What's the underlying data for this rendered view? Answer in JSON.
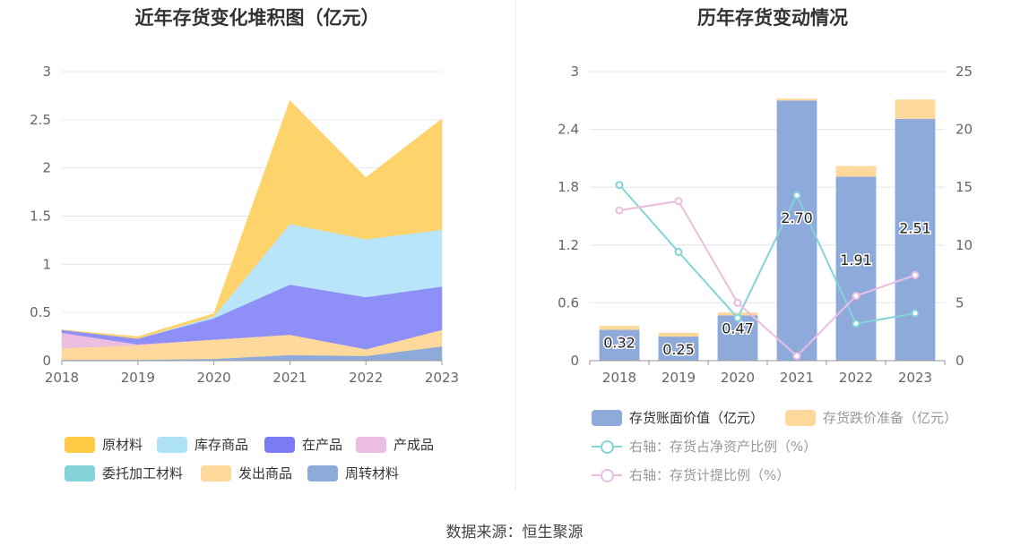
{
  "chart_data": [
    {
      "type": "area",
      "title": "近年存货变化堆积图（亿元）",
      "x": [
        "2018",
        "2019",
        "2020",
        "2021",
        "2022",
        "2023"
      ],
      "ylim": [
        0,
        3
      ],
      "yticks": [
        "0",
        "0.5",
        "1",
        "1.5",
        "2",
        "2.5",
        "3"
      ],
      "stacked": true,
      "grid": true,
      "legend_position": "bottom",
      "series": [
        {
          "name": "周转材料",
          "color": "#8eaadb",
          "values": [
            0.01,
            0.01,
            0.02,
            0.06,
            0.05,
            0.15
          ]
        },
        {
          "name": "委托加工材料",
          "color": "#83d3d8",
          "values": [
            0.0,
            0.0,
            0.0,
            0.0,
            0.0,
            0.0
          ]
        },
        {
          "name": "发出商品",
          "color": "#ffd99b",
          "values": [
            0.12,
            0.15,
            0.2,
            0.21,
            0.07,
            0.17
          ]
        },
        {
          "name": "产成品",
          "color": "#ebbde0",
          "values": [
            0.16,
            0.01,
            0.0,
            0.0,
            0.0,
            0.0
          ]
        },
        {
          "name": "在产品",
          "color": "#8f8ff8",
          "values": [
            0.03,
            0.06,
            0.22,
            0.52,
            0.54,
            0.45
          ]
        },
        {
          "name": "库存商品",
          "color": "#b9e5fa",
          "values": [
            0.0,
            0.0,
            0.02,
            0.63,
            0.6,
            0.59
          ]
        },
        {
          "name": "原材料",
          "color": "#ffd36b",
          "values": [
            0.0,
            0.02,
            0.03,
            1.28,
            0.64,
            1.15
          ]
        }
      ],
      "legend": [
        {
          "name": "原材料",
          "color": "#ffc845"
        },
        {
          "name": "库存商品",
          "color": "#aee2f7"
        },
        {
          "name": "在产品",
          "color": "#7b7bf5"
        },
        {
          "name": "产成品",
          "color": "#ebbde0"
        },
        {
          "name": "委托加工材料",
          "color": "#83d3d8"
        },
        {
          "name": "发出商品",
          "color": "#ffd99b"
        },
        {
          "name": "周转材料",
          "color": "#8eaadb"
        }
      ]
    },
    {
      "type": "bar",
      "title": "历年存货变动情况",
      "categories": [
        "2018",
        "2019",
        "2020",
        "2021",
        "2022",
        "2023"
      ],
      "ylim": [
        0,
        3
      ],
      "yticks": [
        "0",
        "0.6",
        "1.2",
        "1.8",
        "2.4",
        "3"
      ],
      "y2lim": [
        0,
        25
      ],
      "y2ticks": [
        "0",
        "5",
        "10",
        "15",
        "20",
        "25"
      ],
      "grid": true,
      "legend_position": "bottom",
      "series": [
        {
          "name": "存货账面价值（亿元）",
          "color": "#8eaadb",
          "values": [
            0.32,
            0.25,
            0.47,
            2.7,
            1.91,
            2.51
          ],
          "labels": [
            "0.32",
            "0.25",
            "0.47",
            "2.70",
            "1.91",
            "2.51"
          ],
          "stacked": true
        },
        {
          "name": "存货跌价准备（亿元）",
          "color": "#ffd99b",
          "values": [
            0.04,
            0.04,
            0.03,
            0.02,
            0.11,
            0.2
          ],
          "stacked": true
        },
        {
          "name": "右轴：存货占净资产比例（%）",
          "type": "line",
          "axis": "right",
          "color": "#83d3d8",
          "values": [
            15.2,
            9.4,
            3.7,
            14.3,
            3.2,
            4.1
          ]
        },
        {
          "name": "右轴：存货计提比例（%）",
          "type": "line",
          "axis": "right",
          "color": "#ebbde0",
          "values": [
            13.0,
            13.8,
            5.0,
            0.4,
            5.6,
            7.4
          ]
        }
      ]
    }
  ],
  "source": "数据来源：恒生聚源"
}
